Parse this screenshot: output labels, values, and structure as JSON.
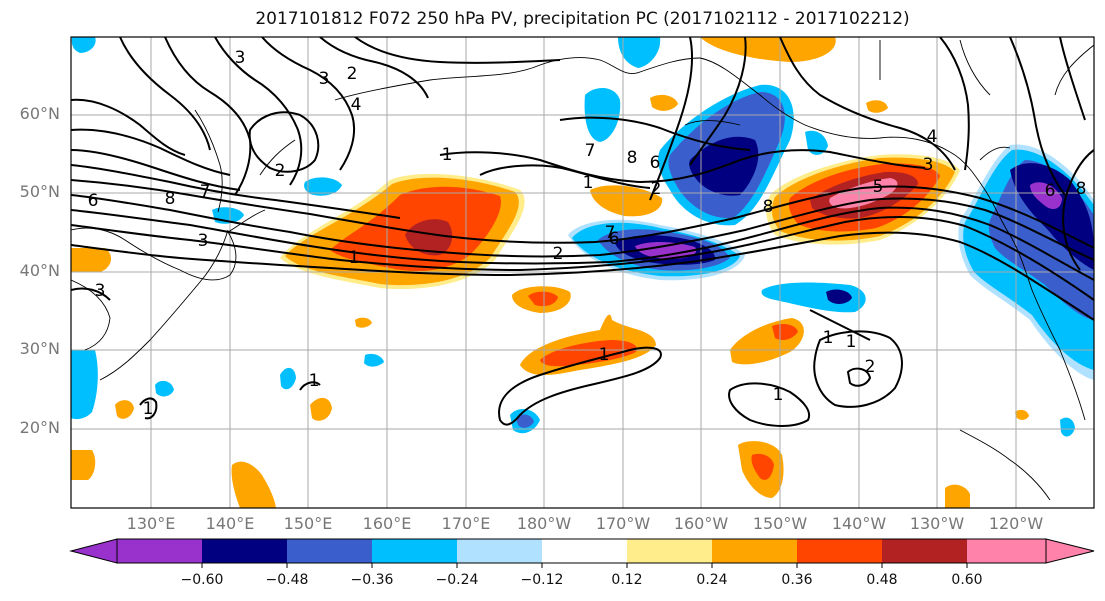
{
  "title": "2017101812 F072 250 hPa PV, precipitation PC (2017102112 - 2017102212)",
  "lat_labels": [
    "60°N",
    "50°N",
    "40°N",
    "30°N",
    "20°N"
  ],
  "lon_labels": [
    "130°E",
    "140°E",
    "150°E",
    "160°E",
    "170°E",
    "180°W",
    "170°W",
    "160°W",
    "150°W",
    "140°W",
    "130°W",
    "120°W"
  ],
  "colorbar": {
    "ticks": [
      "−0.60",
      "−0.48",
      "−0.36",
      "−0.24",
      "−0.12",
      "0.12",
      "0.24",
      "0.36",
      "0.48",
      "0.60"
    ],
    "colors": [
      "#9932cc",
      "#000080",
      "#3a5fcd",
      "#00bfff",
      "#b0e2ff",
      "#ffffff",
      "#ffec8b",
      "#ffa500",
      "#ff4500",
      "#b22222",
      "#ff82ab"
    ]
  },
  "colors": {
    "grid": "#a9a9a9",
    "contour": "#000000"
  },
  "contour_labels": [
    "3",
    "2",
    "4",
    "3",
    "2",
    "6",
    "8",
    "7",
    "3",
    "1",
    "2",
    "1",
    "7",
    "8",
    "6",
    "1",
    "2",
    "7",
    "6",
    "8",
    "5",
    "4",
    "3",
    "6",
    "8",
    "3",
    "1",
    "1",
    "1",
    "1",
    "2",
    "1",
    "1"
  ]
}
